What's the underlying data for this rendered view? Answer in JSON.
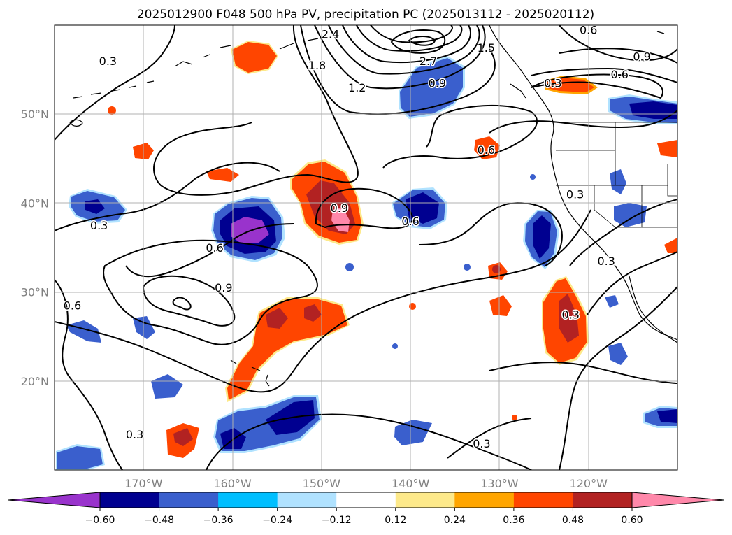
{
  "title": "2025012900 F048 500 hPa PV, precipitation PC (2025013112 - 2025020112)",
  "map": {
    "lon_range": [
      -180,
      -110
    ],
    "lat_range": [
      10,
      60
    ],
    "lon_ticks": [
      {
        "value": -170,
        "label": "170°W"
      },
      {
        "value": -160,
        "label": "160°W"
      },
      {
        "value": -150,
        "label": "150°W"
      },
      {
        "value": -140,
        "label": "140°W"
      },
      {
        "value": -130,
        "label": "130°W"
      },
      {
        "value": -120,
        "label": "120°W"
      }
    ],
    "lat_ticks": [
      {
        "value": 50,
        "label": "50°N"
      },
      {
        "value": 40,
        "label": "40°N"
      },
      {
        "value": 30,
        "label": "30°N"
      },
      {
        "value": 20,
        "label": "20°N"
      }
    ],
    "gridlines": true
  },
  "colorbar": {
    "orientation": "horizontal",
    "extend": "both",
    "min_color": "#9933cc",
    "max_color": "#ff88aa",
    "bins": [
      {
        "color": "#000090"
      },
      {
        "color": "#3a5fcd"
      },
      {
        "color": "#00bfff"
      },
      {
        "color": "#b0e2ff"
      },
      {
        "color": "#ffffff"
      },
      {
        "color": "#fde98a"
      },
      {
        "color": "#ffa500"
      },
      {
        "color": "#ff4500"
      },
      {
        "color": "#b22222"
      }
    ],
    "ticks": [
      {
        "value": -0.6,
        "label": "−0.60"
      },
      {
        "value": -0.48,
        "label": "−0.48"
      },
      {
        "value": -0.36,
        "label": "−0.36"
      },
      {
        "value": -0.24,
        "label": "−0.24"
      },
      {
        "value": -0.12,
        "label": "−0.12"
      },
      {
        "value": 0.12,
        "label": "0.12"
      },
      {
        "value": 0.24,
        "label": "0.24"
      },
      {
        "value": 0.36,
        "label": "0.36"
      },
      {
        "value": 0.48,
        "label": "0.48"
      },
      {
        "value": 0.6,
        "label": "0.60"
      }
    ]
  },
  "contour_labels": [
    {
      "text": "0.3",
      "lon": -174,
      "lat": 56
    },
    {
      "text": "1.8",
      "lon": -150.5,
      "lat": 55.5
    },
    {
      "text": "2.4",
      "lon": -149,
      "lat": 59
    },
    {
      "text": "2.7",
      "lon": -138,
      "lat": 56
    },
    {
      "text": "1.2",
      "lon": -146,
      "lat": 53
    },
    {
      "text": "0.9",
      "lon": -137,
      "lat": 53.5
    },
    {
      "text": "1.5",
      "lon": -131.5,
      "lat": 57.5
    },
    {
      "text": "0.6",
      "lon": -120,
      "lat": 59.5
    },
    {
      "text": "0.9",
      "lon": -114,
      "lat": 56.5
    },
    {
      "text": "0.6",
      "lon": -116.5,
      "lat": 54.5
    },
    {
      "text": "0.3",
      "lon": -124,
      "lat": 53.5
    },
    {
      "text": "0.6",
      "lon": -131.5,
      "lat": 46
    },
    {
      "text": "0.9",
      "lon": -148,
      "lat": 39.5
    },
    {
      "text": "0.6",
      "lon": -140,
      "lat": 38
    },
    {
      "text": "0.3",
      "lon": -121.5,
      "lat": 41
    },
    {
      "text": "0.3",
      "lon": -175,
      "lat": 37.5
    },
    {
      "text": "0.6",
      "lon": -162,
      "lat": 35
    },
    {
      "text": "0.9",
      "lon": -161,
      "lat": 30.5
    },
    {
      "text": "0.6",
      "lon": -178,
      "lat": 28.5
    },
    {
      "text": "0.3",
      "lon": -118,
      "lat": 33.5
    },
    {
      "text": "0.3",
      "lon": -122,
      "lat": 27.5
    },
    {
      "text": "0.3",
      "lon": -171,
      "lat": 14
    },
    {
      "text": "0.3",
      "lon": -132,
      "lat": 13
    }
  ]
}
